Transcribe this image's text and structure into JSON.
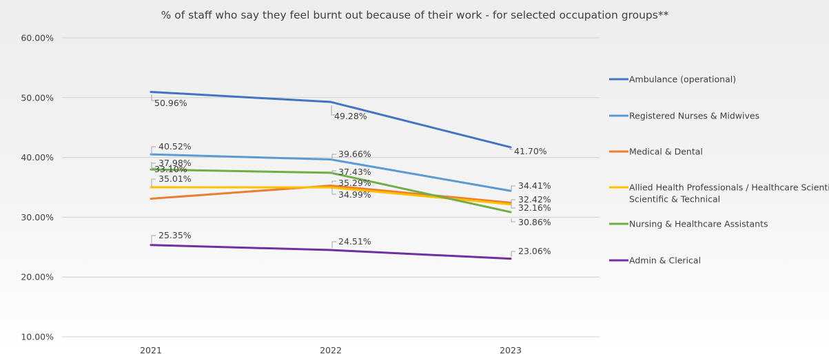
{
  "chart_data": {
    "type": "line",
    "title": "% of staff who say they feel burnt out because of their work - for selected occupation groups**",
    "xlabel": "",
    "ylabel": "",
    "categories": [
      "2021",
      "2022",
      "2023"
    ],
    "ylim": [
      10,
      60
    ],
    "yticks": [
      "10.00%",
      "20.00%",
      "30.00%",
      "40.00%",
      "50.00%",
      "60.00%"
    ],
    "grid": true,
    "legend_position": "right",
    "series": [
      {
        "name": "Ambulance (operational)",
        "color": "#4472c4",
        "values": [
          50.96,
          49.28,
          41.7
        ],
        "labels": [
          "50.96%",
          "49.28%",
          "41.70%"
        ]
      },
      {
        "name": "Registered Nurses & Midwives",
        "color": "#5b9bd5",
        "values": [
          40.52,
          39.66,
          34.41
        ],
        "labels": [
          "40.52%",
          "39.66%",
          "34.41%"
        ]
      },
      {
        "name": "Medical & Dental",
        "color": "#ed7d31",
        "values": [
          33.1,
          35.29,
          32.42
        ],
        "labels": [
          "33.10%",
          "35.29%",
          "32.42%"
        ]
      },
      {
        "name": "Allied Health Professionals / Healthcare Scientists / Scientific & Technical",
        "color": "#ffc000",
        "values": [
          35.01,
          34.99,
          32.16
        ],
        "labels": [
          "35.01%",
          "34.99%",
          "32.16%"
        ]
      },
      {
        "name": "Nursing & Healthcare Assistants",
        "color": "#70ad47",
        "values": [
          37.98,
          37.43,
          30.86
        ],
        "labels": [
          "37.98%",
          "37.43%",
          "30.86%"
        ]
      },
      {
        "name": "Admin & Clerical",
        "color": "#7030a0",
        "values": [
          25.35,
          24.51,
          23.06
        ],
        "labels": [
          "25.35%",
          "24.51%",
          "23.06%"
        ]
      }
    ]
  }
}
